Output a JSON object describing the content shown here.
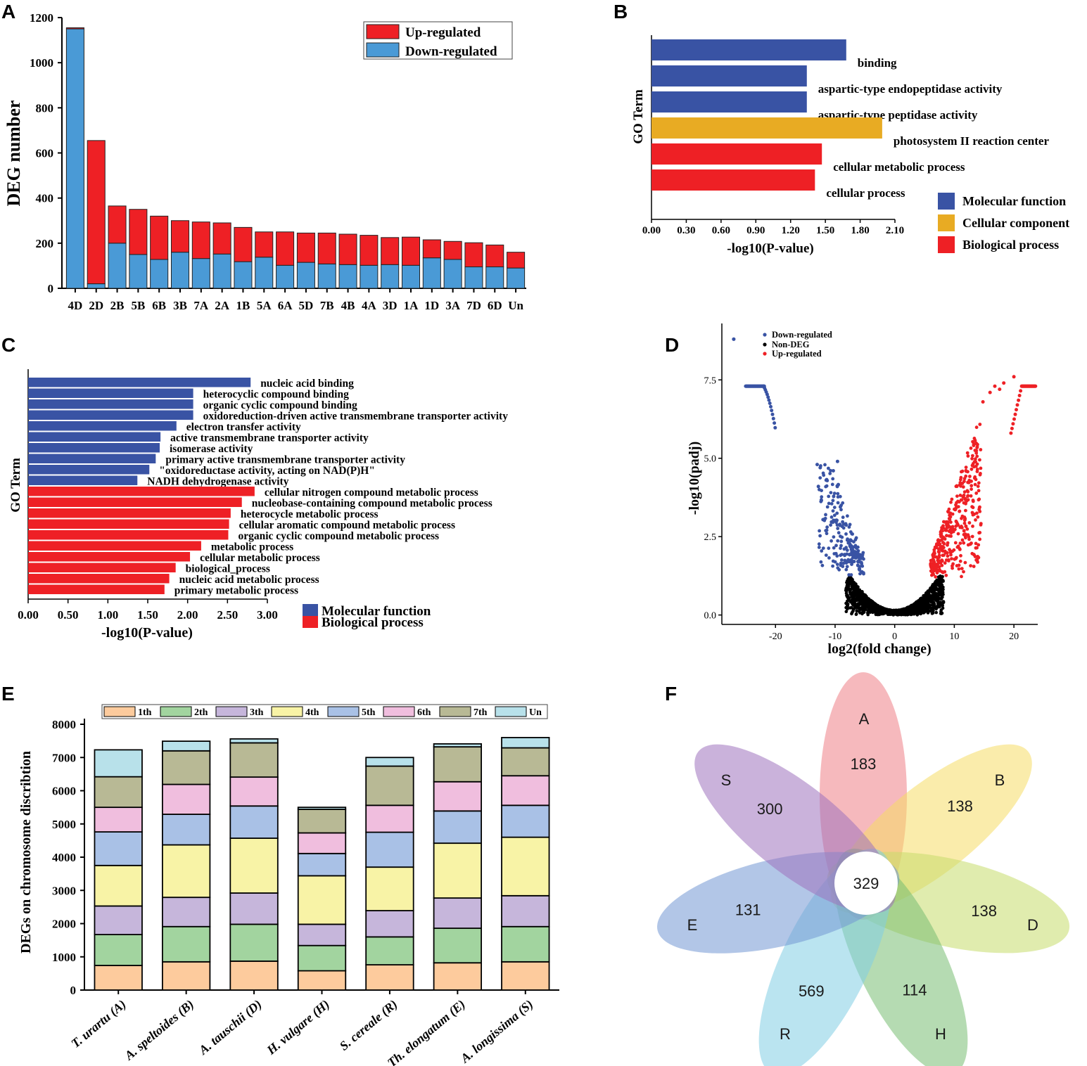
{
  "panels": {
    "a": "A",
    "b": "B",
    "c": "C",
    "d": "D",
    "e": "E",
    "f": "F"
  },
  "colors": {
    "up": "#ee2025",
    "down": "#4a9ad6",
    "mf": "#3953a4",
    "cc": "#e8ab23",
    "bp": "#ee2025",
    "black": "#000000"
  },
  "chart_data": [
    {
      "id": "A",
      "type": "bar",
      "stacked": true,
      "title": "",
      "xlabel": "",
      "ylabel": "DEG number",
      "ylim": [
        0,
        1200
      ],
      "yticks": [
        0,
        200,
        400,
        600,
        800,
        1000,
        1200
      ],
      "categories": [
        "4D",
        "2D",
        "2B",
        "5B",
        "6B",
        "3B",
        "7A",
        "2A",
        "1B",
        "5A",
        "6A",
        "5D",
        "7B",
        "4B",
        "4A",
        "3D",
        "1A",
        "1D",
        "3A",
        "7D",
        "6D",
        "Un"
      ],
      "series": [
        {
          "name": "Down-regulated",
          "values": [
            1150,
            20,
            200,
            150,
            128,
            160,
            132,
            152,
            118,
            138,
            102,
            115,
            108,
            105,
            102,
            105,
            102,
            135,
            128,
            95,
            95,
            90
          ]
        },
        {
          "name": "Up-regulated",
          "values": [
            5,
            635,
            165,
            200,
            192,
            140,
            162,
            138,
            152,
            112,
            148,
            130,
            137,
            135,
            133,
            120,
            125,
            80,
            80,
            107,
            97,
            70
          ]
        }
      ],
      "legend": [
        "Up-regulated",
        "Down-regulated"
      ],
      "legend_position": "top-right"
    },
    {
      "id": "B",
      "type": "bar",
      "orientation": "horizontal",
      "ylabel": "GO Term",
      "xlabel": "-log10(P-value)",
      "xlim": [
        0,
        2.1
      ],
      "xticks": [
        "0.00",
        "0.30",
        "0.60",
        "0.90",
        "1.20",
        "1.50",
        "1.80",
        "2.10"
      ],
      "terms": [
        {
          "label": "binding",
          "value": 1.68,
          "category": "Molecular function"
        },
        {
          "label": "aspartic-type endopeptidase activity",
          "value": 1.34,
          "category": "Molecular function"
        },
        {
          "label": "aspartic-type peptidase activity",
          "value": 1.34,
          "category": "Molecular function"
        },
        {
          "label": "photosystem II reaction center",
          "value": 1.99,
          "category": "Cellular component"
        },
        {
          "label": "cellular metabolic process",
          "value": 1.47,
          "category": "Biological process"
        },
        {
          "label": "cellular process",
          "value": 1.41,
          "category": "Biological process"
        }
      ],
      "legend": [
        "Molecular function",
        "Cellular component",
        "Biological process"
      ]
    },
    {
      "id": "C",
      "type": "bar",
      "orientation": "horizontal",
      "ylabel": "GO Term",
      "xlabel": "-log10(P-value)",
      "xlim": [
        0,
        3.0
      ],
      "xticks": [
        "0.00",
        "0.50",
        "1.00",
        "1.50",
        "2.00",
        "2.50",
        "3.00"
      ],
      "terms": [
        {
          "label": "nucleic acid binding",
          "value": 2.79,
          "category": "Molecular function"
        },
        {
          "label": "heterocyclic compound binding",
          "value": 2.07,
          "category": "Molecular function"
        },
        {
          "label": "organic cyclic compound binding",
          "value": 2.07,
          "category": "Molecular function"
        },
        {
          "label": "oxidoreduction-driven active transmembrane transporter activity",
          "value": 2.07,
          "category": "Molecular function"
        },
        {
          "label": "electron transfer activity",
          "value": 1.86,
          "category": "Molecular function"
        },
        {
          "label": "active transmembrane transporter activity",
          "value": 1.66,
          "category": "Molecular function"
        },
        {
          "label": "isomerase activity",
          "value": 1.65,
          "category": "Molecular function"
        },
        {
          "label": "primary active transmembrane transporter activity",
          "value": 1.6,
          "category": "Molecular function"
        },
        {
          "label": "\"oxidoreductase activity, acting on NAD(P)H\"",
          "value": 1.52,
          "category": "Molecular function"
        },
        {
          "label": "NADH dehydrogenase activity",
          "value": 1.37,
          "category": "Molecular function"
        },
        {
          "label": "cellular nitrogen compound metabolic process",
          "value": 2.84,
          "category": "Biological process"
        },
        {
          "label": "nucleobase-containing compound metabolic process",
          "value": 2.68,
          "category": "Biological process"
        },
        {
          "label": "heterocycle metabolic process",
          "value": 2.54,
          "category": "Biological process"
        },
        {
          "label": "cellular aromatic compound metabolic process",
          "value": 2.52,
          "category": "Biological process"
        },
        {
          "label": "organic cyclic compound metabolic process",
          "value": 2.51,
          "category": "Biological process"
        },
        {
          "label": "metabolic process",
          "value": 2.17,
          "category": "Biological process"
        },
        {
          "label": "cellular metabolic process",
          "value": 2.03,
          "category": "Biological process"
        },
        {
          "label": "biological_process",
          "value": 1.85,
          "category": "Biological process"
        },
        {
          "label": "nucleic acid metabolic process",
          "value": 1.77,
          "category": "Biological process"
        },
        {
          "label": "primary metabolic process",
          "value": 1.71,
          "category": "Biological process"
        }
      ],
      "legend": [
        "Molecular function",
        "Biological process"
      ]
    },
    {
      "id": "D",
      "type": "scatter",
      "subtype": "volcano",
      "xlabel": "log2(fold change)",
      "ylabel": "-log10(padj)",
      "xlim": [
        -29,
        24
      ],
      "ylim": [
        -0.3,
        9.3
      ],
      "xticks": [
        "-20",
        "-10",
        "0",
        "10",
        "20"
      ],
      "yticks": [
        "0.0",
        "2.5",
        "5.0",
        "7.5"
      ],
      "legend": [
        "Down-regulated",
        "Non-DEG",
        "Up-regulated"
      ],
      "legend_position": "top-left",
      "clusters": [
        {
          "name": "Down-regulated",
          "note": "saturated",
          "x_range": [
            -25,
            -22
          ],
          "y": 7.3
        },
        {
          "name": "Down-regulated",
          "note": "tail",
          "x_range": [
            -22,
            -20
          ],
          "y_range": [
            6.2,
            7.3
          ]
        },
        {
          "name": "Down-regulated",
          "note": "outlier",
          "x": -27,
          "y": 8.8
        },
        {
          "name": "Up-regulated",
          "note": "saturated",
          "x_range": [
            21,
            23.5
          ],
          "y": 7.3
        },
        {
          "name": "Up-regulated",
          "note": "outlier",
          "x": 20,
          "y": 7.6
        }
      ]
    },
    {
      "id": "E",
      "type": "bar",
      "stacked": true,
      "ylabel": "DEGs on chromosome discribtion",
      "xlabel": "",
      "ylim": [
        0,
        8000
      ],
      "yticks": [
        0,
        1000,
        2000,
        3000,
        4000,
        5000,
        6000,
        7000,
        8000
      ],
      "categories": [
        "T. urartu (A)",
        "A. speltoides (B)",
        "A. tauschii (D)",
        "H. vulgare (H)",
        "S. cereale (R)",
        "Th. elongatum (E)",
        "A. longissima (S)"
      ],
      "series": [
        {
          "name": "1th",
          "values": [
            740,
            850,
            870,
            580,
            760,
            820,
            850
          ]
        },
        {
          "name": "2th",
          "values": [
            930,
            1060,
            1110,
            760,
            840,
            1040,
            1060
          ]
        },
        {
          "name": "3th",
          "values": [
            860,
            880,
            940,
            640,
            790,
            910,
            930
          ]
        },
        {
          "name": "4th",
          "values": [
            1220,
            1580,
            1650,
            1460,
            1310,
            1650,
            1760
          ]
        },
        {
          "name": "5th",
          "values": [
            1010,
            920,
            970,
            670,
            1050,
            970,
            960
          ]
        },
        {
          "name": "6th",
          "values": [
            740,
            900,
            870,
            620,
            810,
            880,
            890
          ]
        },
        {
          "name": "7th",
          "values": [
            920,
            1010,
            1030,
            710,
            1180,
            1050,
            840
          ]
        },
        {
          "name": "Un",
          "values": [
            810,
            290,
            120,
            60,
            260,
            90,
            310
          ]
        }
      ],
      "legend": [
        "1th",
        "2th",
        "3th",
        "4th",
        "5th",
        "6th",
        "7th",
        "Un"
      ],
      "legend_position": "top",
      "colors": [
        "#fdcb9d",
        "#a2d49f",
        "#c6b6db",
        "#f8f3a6",
        "#a9c1e6",
        "#f0bede",
        "#b8b995",
        "#b8e1ea"
      ]
    },
    {
      "id": "F",
      "type": "venn",
      "subtype": "flower",
      "core": {
        "label": "329",
        "value": 329
      },
      "petals": [
        {
          "name": "A",
          "value": 183
        },
        {
          "name": "B",
          "value": 138
        },
        {
          "name": "D",
          "value": 138
        },
        {
          "name": "H",
          "value": 114
        },
        {
          "name": "R",
          "value": 569
        },
        {
          "name": "E",
          "value": 131
        },
        {
          "name": "S",
          "value": 300
        }
      ],
      "petal_colors": [
        "#ef7f87",
        "#f6dd66",
        "#c6dd6c",
        "#79bd73",
        "#82cde4",
        "#7398d3",
        "#9f72bd"
      ]
    }
  ]
}
